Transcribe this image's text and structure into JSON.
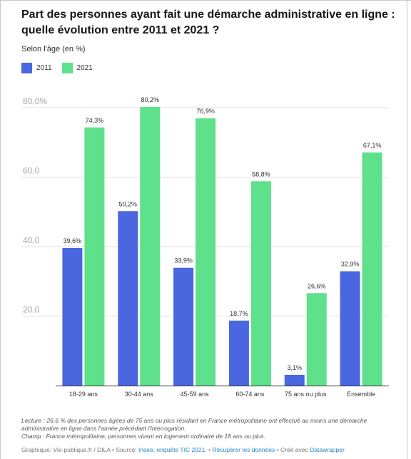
{
  "title": "Part des personnes ayant fait une démarche administrative en ligne : quelle évolution entre 2011 et 2021 ?",
  "subtitle": "Selon l'âge (en %)",
  "legend": [
    {
      "label": "2011",
      "color": "#4a67e0"
    },
    {
      "label": "2021",
      "color": "#5fe08b"
    }
  ],
  "chart_data": {
    "type": "bar",
    "categories": [
      "18-29 ans",
      "30-44 ans",
      "45-59 ans",
      "60-74 ans",
      "75 ans ou plus",
      "Ensemble"
    ],
    "series": [
      {
        "name": "2011",
        "color": "#4a67e0",
        "values": [
          39.6,
          50.2,
          33.9,
          18.7,
          3.1,
          32.9
        ],
        "labels": [
          "39,6%",
          "50,2%",
          "33,9%",
          "18,7%",
          "3,1%",
          "32,9%"
        ]
      },
      {
        "name": "2021",
        "color": "#5fe08b",
        "values": [
          74.3,
          80.2,
          76.9,
          58.8,
          26.6,
          67.1
        ],
        "labels": [
          "74,3%",
          "80,2%",
          "76,9%",
          "58,8%",
          "26,6%",
          "67,1%"
        ]
      }
    ],
    "yticks": [
      20,
      40,
      60,
      80
    ],
    "ytick_labels": [
      "20,0",
      "40,0",
      "60,0",
      "80,0%"
    ],
    "ylim": [
      0,
      80.2
    ],
    "grid": true,
    "legend_position": "top-left"
  },
  "footer": {
    "lecture": "Lecture : 26,6 % des personnes âgées de 75 ans ou plus résidant en France métropolitaine ont effectué au moins une démarche administrative en ligne dans l'année précédant l'interrogation.",
    "champ": "Champ : France métropolitaine, personnes vivant en logement ordinaire de 18 ans ou plus.",
    "credit_prefix": "Graphique: Vie-publique.fr / DILA • Source: ",
    "source_link": "Insee, enquête TIC 2021.",
    "sep1": " • ",
    "download_link": "Récupérer les données",
    "sep2": " • Créé avec ",
    "datawrapper_link": "Datawrapper"
  }
}
